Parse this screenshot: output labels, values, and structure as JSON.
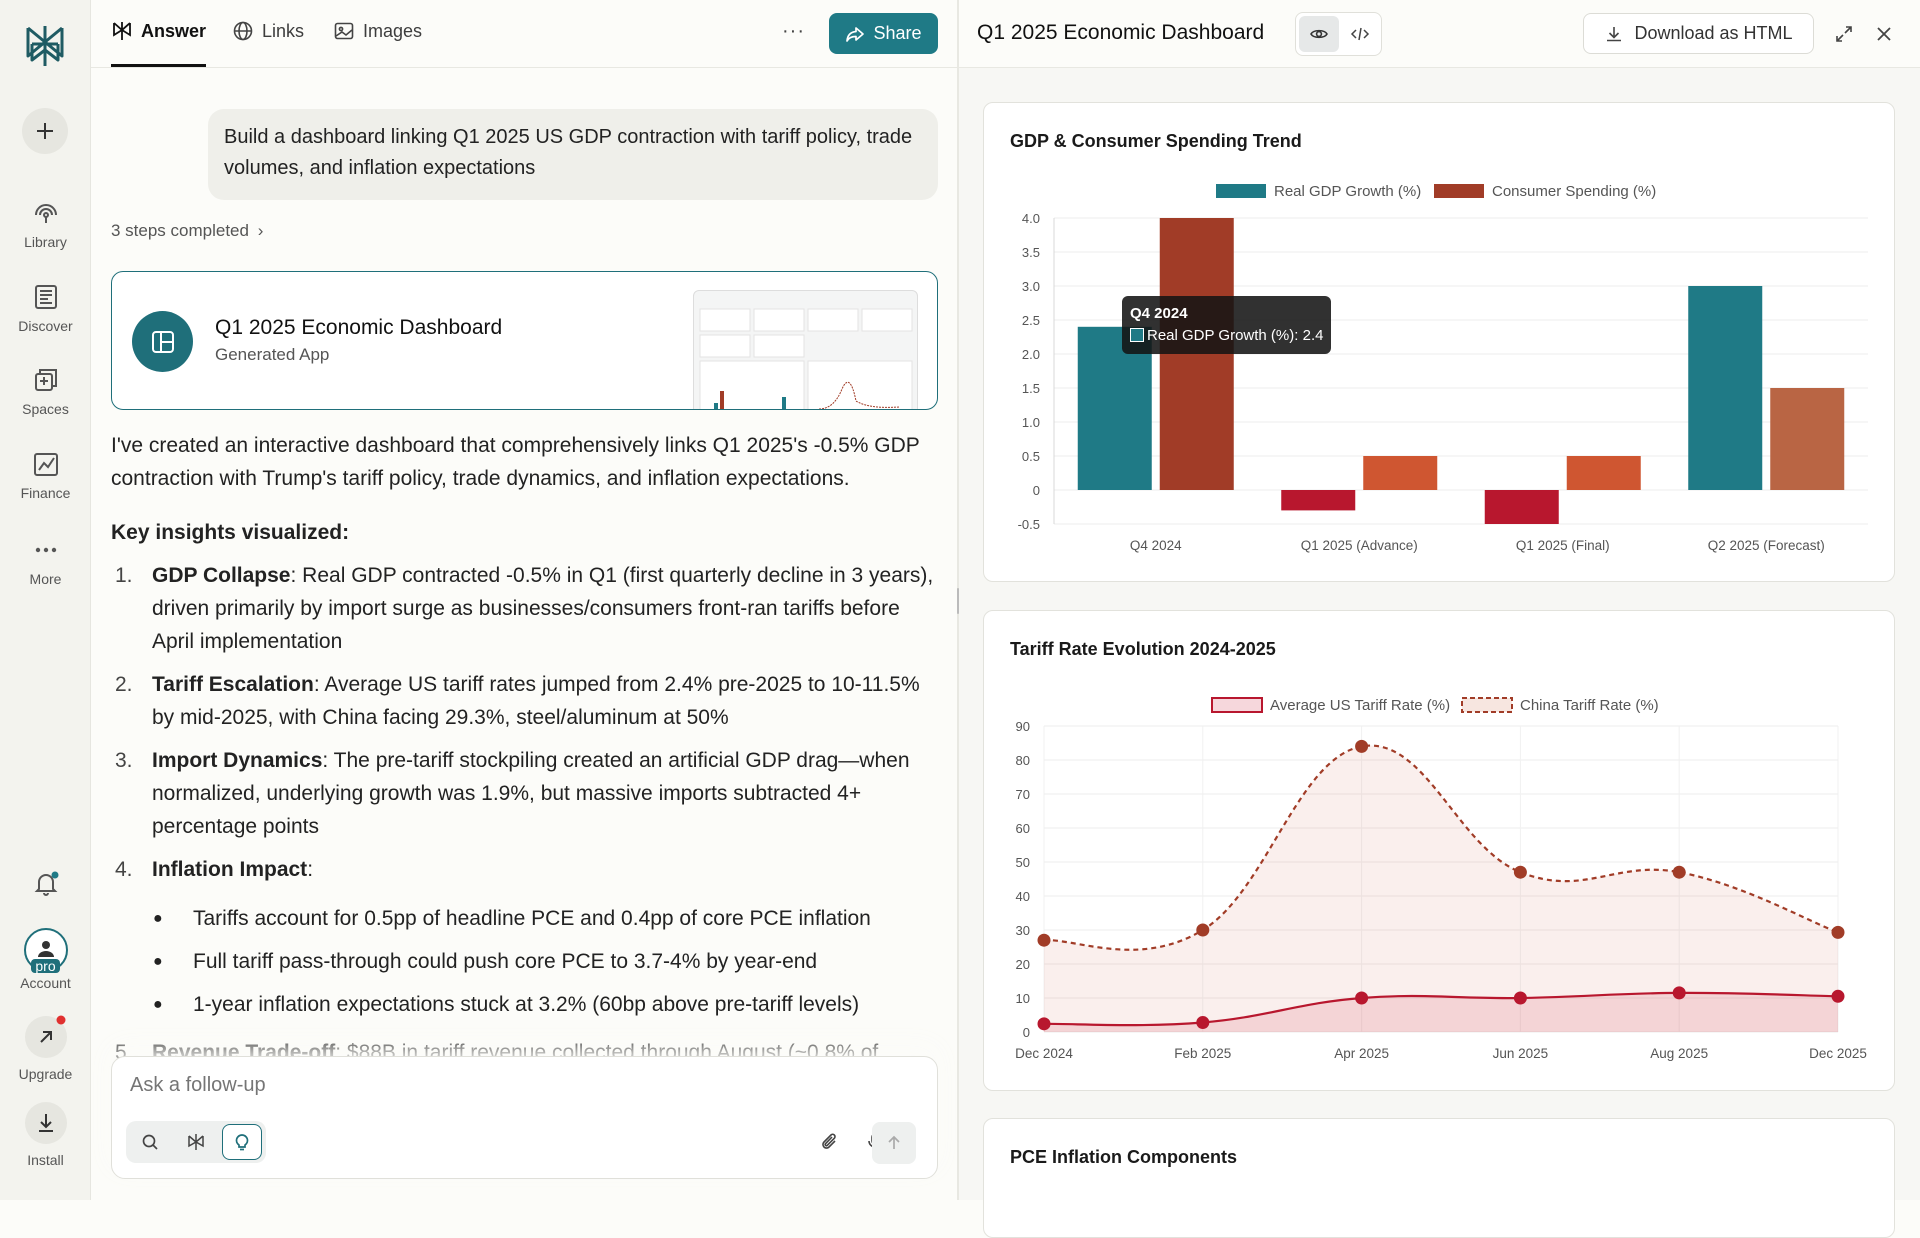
{
  "rail": {
    "items": [
      {
        "label": "Library"
      },
      {
        "label": "Discover"
      },
      {
        "label": "Spaces"
      },
      {
        "label": "Finance"
      },
      {
        "label": "More"
      }
    ],
    "account_label": "Account",
    "pro_badge": "pro",
    "upgrade_label": "Upgrade",
    "install_label": "Install"
  },
  "chat": {
    "tabs": [
      {
        "label": "Answer"
      },
      {
        "label": "Links"
      },
      {
        "label": "Images"
      }
    ],
    "more_label": "···",
    "share_label": "Share",
    "query": "Build a dashboard linking Q1 2025 US GDP contraction with tariff policy, trade volumes, and inflation expectations",
    "steps": "3 steps completed",
    "app_card": {
      "title": "Q1 2025 Economic Dashboard",
      "subtitle": "Generated App"
    },
    "intro": "I've created an interactive dashboard that comprehensively links Q1 2025's -0.5% GDP contraction with Trump's tariff policy, trade dynamics, and inflation expectations.",
    "key_heading": "Key insights visualized:",
    "insights": [
      {
        "num": "1.",
        "bold": "GDP Collapse",
        "text": ": Real GDP contracted -0.5% in Q1 (first quarterly decline in 3 years), driven primarily by import surge as businesses/consumers front-ran tariffs before April implementation"
      },
      {
        "num": "2.",
        "bold": "Tariff Escalation",
        "text": ": Average US tariff rates jumped from 2.4% pre-2025 to 10-11.5% by mid-2025, with China facing 29.3%, steel/aluminum at 50%"
      },
      {
        "num": "3.",
        "bold": "Import Dynamics",
        "text": ": The pre-tariff stockpiling created an artificial GDP drag—when normalized, underlying growth was 1.9%, but massive imports subtracted 4+ percentage points"
      },
      {
        "num": "4.",
        "bold": "Inflation Impact",
        "text": ":"
      }
    ],
    "bullets": [
      "Tariffs account for 0.5pp of headline PCE and 0.4pp of core PCE inflation",
      "Full tariff pass-through could push core PCE to 3.7-4% by year-end",
      "1-year inflation expectations stuck at 3.2% (60bp above pre-tariff levels)"
    ],
    "cut_item": {
      "num": "5.",
      "bold": "Revenue Trade-off",
      "text": ": $88B in tariff revenue collected through August (~0.8% of"
    },
    "ask_placeholder": "Ask a follow-up"
  },
  "panel": {
    "title": "Q1 2025 Economic Dashboard",
    "download_label": "Download as HTML"
  },
  "chart_data": [
    {
      "type": "bar",
      "title": "GDP & Consumer Spending Trend",
      "categories": [
        "Q4 2024",
        "Q1 2025 (Advance)",
        "Q1 2025 (Final)",
        "Q2 2025 (Forecast)"
      ],
      "series": [
        {
          "name": "Real GDP Growth (%)",
          "values": [
            2.4,
            -0.3,
            -0.5,
            3.0
          ],
          "colors": [
            "#1f7a86",
            "#b8172e",
            "#b8172e",
            "#1f7a86"
          ]
        },
        {
          "name": "Consumer Spending (%)",
          "values": [
            4.0,
            0.5,
            0.5,
            1.5
          ],
          "colors": [
            "#a13c27",
            "#cf5631",
            "#cf5631",
            "#b96544"
          ]
        }
      ],
      "yticks": [
        "4.0",
        "3.5",
        "3.0",
        "2.5",
        "2.0",
        "1.5",
        "1.0",
        "0.5",
        "0",
        "-0.5"
      ],
      "ylim": [
        -0.5,
        4.0
      ],
      "legend_colors": [
        "#1f7a86",
        "#a13c27"
      ],
      "tooltip": {
        "title": "Q4 2024",
        "text": "Real GDP Growth (%): 2.4"
      }
    },
    {
      "type": "line",
      "title": "Tariff Rate Evolution 2024-2025",
      "categories": [
        "Dec 2024",
        "Feb 2025",
        "Apr 2025",
        "Jun 2025",
        "Aug 2025",
        "Dec 2025"
      ],
      "series": [
        {
          "name": "Average US Tariff Rate (%)",
          "values": [
            2.4,
            2.8,
            10.0,
            10.0,
            11.5,
            10.5
          ],
          "color": "#b8172e"
        },
        {
          "name": "China Tariff Rate (%)",
          "values": [
            27,
            30,
            84,
            47,
            47,
            29.3
          ],
          "color": "#a13c27"
        }
      ],
      "yticks": [
        "90",
        "80",
        "70",
        "60",
        "50",
        "40",
        "30",
        "20",
        "10",
        "0"
      ],
      "ylim": [
        0,
        90
      ]
    },
    {
      "type": "bar",
      "title": "PCE Inflation Components"
    }
  ]
}
